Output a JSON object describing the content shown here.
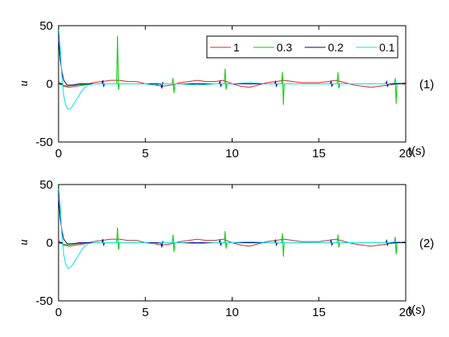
{
  "chart_data": [
    {
      "type": "line",
      "annotation": "(1)",
      "xlabel": "t(s)",
      "ylabel": "u",
      "xlim": [
        0,
        20
      ],
      "ylim": [
        -50,
        50
      ],
      "xticks": [
        "0",
        "5",
        "10",
        "15",
        "20"
      ],
      "yticks": [
        "-50",
        "0",
        "50"
      ],
      "grid": false,
      "legend_position": "top-right",
      "series": [
        {
          "name": "1",
          "color": "#d62728",
          "points": [
            [
              0,
              2
            ],
            [
              0.3,
              -2
            ],
            [
              0.6,
              -3
            ],
            [
              1,
              -2
            ],
            [
              1.5,
              -1
            ],
            [
              2,
              1
            ],
            [
              2.5,
              2
            ],
            [
              3,
              3
            ],
            [
              3.5,
              3
            ],
            [
              4,
              2
            ],
            [
              4.5,
              2
            ],
            [
              5,
              0
            ],
            [
              5.5,
              -1
            ],
            [
              6,
              -2
            ],
            [
              6.5,
              -1
            ],
            [
              7,
              1
            ],
            [
              7.5,
              2
            ],
            [
              8,
              3
            ],
            [
              8.5,
              2
            ],
            [
              9,
              2
            ],
            [
              9.5,
              3
            ],
            [
              10,
              0
            ],
            [
              10.5,
              -2
            ],
            [
              11,
              -3
            ],
            [
              11.5,
              -1
            ],
            [
              12,
              1
            ],
            [
              12.5,
              2
            ],
            [
              13,
              3
            ],
            [
              13.5,
              2
            ],
            [
              14,
              1
            ],
            [
              14.5,
              1
            ],
            [
              15,
              1
            ],
            [
              15.5,
              2
            ],
            [
              16,
              3
            ],
            [
              16.5,
              1
            ],
            [
              17,
              -1
            ],
            [
              17.5,
              -2
            ],
            [
              18,
              -3
            ],
            [
              18.5,
              -2
            ],
            [
              19,
              -1
            ],
            [
              19.5,
              0
            ],
            [
              20,
              1
            ]
          ]
        },
        {
          "name": "0.3",
          "color": "#00cc00",
          "points": [
            [
              0,
              0
            ],
            [
              0.5,
              -2
            ],
            [
              1,
              -1
            ],
            [
              2,
              0
            ],
            [
              3,
              0
            ],
            [
              3.35,
              0
            ],
            [
              3.4,
              41
            ],
            [
              3.45,
              -5
            ],
            [
              3.5,
              0
            ],
            [
              5,
              0
            ],
            [
              6.55,
              0
            ],
            [
              6.6,
              5
            ],
            [
              6.65,
              -8
            ],
            [
              6.7,
              0
            ],
            [
              9.55,
              0
            ],
            [
              9.6,
              13
            ],
            [
              9.65,
              -5
            ],
            [
              9.7,
              0
            ],
            [
              12.85,
              0
            ],
            [
              12.9,
              10
            ],
            [
              12.95,
              -18
            ],
            [
              13,
              0
            ],
            [
              16.05,
              0
            ],
            [
              16.1,
              10
            ],
            [
              16.15,
              -4
            ],
            [
              16.2,
              0
            ],
            [
              19.35,
              0
            ],
            [
              19.4,
              5
            ],
            [
              19.45,
              -17
            ],
            [
              19.5,
              0
            ],
            [
              20,
              0
            ]
          ]
        },
        {
          "name": "0.2",
          "color": "#00008b",
          "points": [
            [
              0,
              38
            ],
            [
              0.05,
              30
            ],
            [
              0.1,
              20
            ],
            [
              0.2,
              10
            ],
            [
              0.3,
              3
            ],
            [
              0.5,
              -1
            ],
            [
              0.8,
              -1
            ],
            [
              1.2,
              0
            ],
            [
              2.5,
              0
            ],
            [
              2.55,
              3
            ],
            [
              2.6,
              -2
            ],
            [
              2.65,
              0
            ],
            [
              5.9,
              0
            ],
            [
              5.95,
              -4
            ],
            [
              6,
              1
            ],
            [
              6.05,
              0
            ],
            [
              9.25,
              0
            ],
            [
              9.3,
              2
            ],
            [
              9.35,
              -2
            ],
            [
              9.4,
              0
            ],
            [
              12.45,
              0
            ],
            [
              12.5,
              2
            ],
            [
              12.55,
              -2
            ],
            [
              12.6,
              0
            ],
            [
              15.65,
              0
            ],
            [
              15.7,
              2
            ],
            [
              15.75,
              -2
            ],
            [
              15.8,
              0
            ],
            [
              18.85,
              0
            ],
            [
              18.9,
              2
            ],
            [
              18.95,
              -2
            ],
            [
              19,
              0
            ],
            [
              20,
              0
            ]
          ]
        },
        {
          "name": "0.1",
          "color": "#00e5e5",
          "points": [
            [
              0,
              50
            ],
            [
              0.1,
              30
            ],
            [
              0.2,
              5
            ],
            [
              0.3,
              -10
            ],
            [
              0.4,
              -18
            ],
            [
              0.55,
              -22
            ],
            [
              0.7,
              -21
            ],
            [
              0.9,
              -17
            ],
            [
              1.1,
              -12
            ],
            [
              1.3,
              -7
            ],
            [
              1.5,
              -3
            ],
            [
              1.7,
              -1
            ],
            [
              2,
              0
            ],
            [
              4,
              0
            ],
            [
              5,
              0
            ],
            [
              5.5,
              -1
            ],
            [
              6,
              0
            ],
            [
              7,
              0
            ],
            [
              8,
              -1
            ],
            [
              9,
              0
            ],
            [
              10,
              0
            ],
            [
              11,
              1
            ],
            [
              12,
              0
            ],
            [
              13,
              0
            ],
            [
              14,
              0
            ],
            [
              15,
              0
            ],
            [
              16,
              0
            ],
            [
              17,
              0
            ],
            [
              18,
              0
            ],
            [
              19,
              0
            ],
            [
              19.5,
              1
            ],
            [
              20,
              0
            ]
          ]
        }
      ]
    },
    {
      "type": "line",
      "annotation": "(2)",
      "xlabel": "t(s)",
      "ylabel": "u",
      "xlim": [
        0,
        20
      ],
      "ylim": [
        -50,
        50
      ],
      "xticks": [
        "0",
        "5",
        "10",
        "15",
        "20"
      ],
      "yticks": [
        "-50",
        "0",
        "50"
      ],
      "grid": false,
      "series": [
        {
          "name": "1",
          "color": "#d62728",
          "points": [
            [
              0,
              2
            ],
            [
              0.3,
              -2
            ],
            [
              0.6,
              -3
            ],
            [
              1,
              -2
            ],
            [
              1.5,
              -1
            ],
            [
              2,
              1
            ],
            [
              2.5,
              2
            ],
            [
              3,
              3
            ],
            [
              3.5,
              3
            ],
            [
              4,
              2
            ],
            [
              4.5,
              2
            ],
            [
              5,
              0
            ],
            [
              5.5,
              -1
            ],
            [
              6,
              -2
            ],
            [
              6.5,
              -1
            ],
            [
              7,
              1
            ],
            [
              7.5,
              2
            ],
            [
              8,
              3
            ],
            [
              8.5,
              2
            ],
            [
              9,
              2
            ],
            [
              9.5,
              3
            ],
            [
              10,
              0
            ],
            [
              10.5,
              -2
            ],
            [
              11,
              -3
            ],
            [
              11.5,
              -1
            ],
            [
              12,
              1
            ],
            [
              12.5,
              2
            ],
            [
              13,
              3
            ],
            [
              13.5,
              2
            ],
            [
              14,
              1
            ],
            [
              14.5,
              1
            ],
            [
              15,
              1
            ],
            [
              15.5,
              2
            ],
            [
              16,
              3
            ],
            [
              16.5,
              1
            ],
            [
              17,
              -1
            ],
            [
              17.5,
              -2
            ],
            [
              18,
              -3
            ],
            [
              18.5,
              -2
            ],
            [
              19,
              -1
            ],
            [
              19.5,
              0
            ],
            [
              20,
              1
            ]
          ]
        },
        {
          "name": "0.3",
          "color": "#00cc00",
          "points": [
            [
              0,
              0
            ],
            [
              0.5,
              -2
            ],
            [
              1,
              -1
            ],
            [
              2,
              0
            ],
            [
              3,
              0
            ],
            [
              3.35,
              0
            ],
            [
              3.4,
              13
            ],
            [
              3.45,
              -6
            ],
            [
              3.5,
              0
            ],
            [
              6.55,
              0
            ],
            [
              6.6,
              7
            ],
            [
              6.65,
              -8
            ],
            [
              6.7,
              0
            ],
            [
              9.55,
              0
            ],
            [
              9.6,
              10
            ],
            [
              9.65,
              -5
            ],
            [
              9.7,
              0
            ],
            [
              12.85,
              0
            ],
            [
              12.9,
              8
            ],
            [
              12.95,
              -12
            ],
            [
              13,
              0
            ],
            [
              16.05,
              0
            ],
            [
              16.1,
              7
            ],
            [
              16.15,
              -4
            ],
            [
              16.2,
              0
            ],
            [
              19.35,
              0
            ],
            [
              19.4,
              5
            ],
            [
              19.45,
              -10
            ],
            [
              19.5,
              0
            ],
            [
              20,
              0
            ]
          ]
        },
        {
          "name": "0.2",
          "color": "#00008b",
          "points": [
            [
              0,
              38
            ],
            [
              0.05,
              30
            ],
            [
              0.1,
              20
            ],
            [
              0.2,
              10
            ],
            [
              0.3,
              3
            ],
            [
              0.5,
              -1
            ],
            [
              0.8,
              -1
            ],
            [
              1.2,
              0
            ],
            [
              2.5,
              0
            ],
            [
              2.55,
              3
            ],
            [
              2.6,
              -2
            ],
            [
              2.65,
              0
            ],
            [
              5.9,
              0
            ],
            [
              5.95,
              -4
            ],
            [
              6,
              1
            ],
            [
              6.05,
              0
            ],
            [
              9.25,
              0
            ],
            [
              9.3,
              2
            ],
            [
              9.35,
              -2
            ],
            [
              9.4,
              0
            ],
            [
              12.45,
              0
            ],
            [
              12.5,
              2
            ],
            [
              12.55,
              -2
            ],
            [
              12.6,
              0
            ],
            [
              15.65,
              0
            ],
            [
              15.7,
              2
            ],
            [
              15.75,
              -2
            ],
            [
              15.8,
              0
            ],
            [
              18.85,
              0
            ],
            [
              18.9,
              2
            ],
            [
              18.95,
              -2
            ],
            [
              19,
              0
            ],
            [
              20,
              0
            ]
          ]
        },
        {
          "name": "0.1",
          "color": "#00e5e5",
          "points": [
            [
              0,
              50
            ],
            [
              0.1,
              30
            ],
            [
              0.2,
              5
            ],
            [
              0.3,
              -10
            ],
            [
              0.4,
              -18
            ],
            [
              0.55,
              -22
            ],
            [
              0.7,
              -21
            ],
            [
              0.9,
              -17
            ],
            [
              1.1,
              -12
            ],
            [
              1.3,
              -7
            ],
            [
              1.5,
              -3
            ],
            [
              1.7,
              -1
            ],
            [
              2,
              0
            ],
            [
              4,
              0
            ],
            [
              5,
              0
            ],
            [
              5.5,
              -1
            ],
            [
              6,
              0
            ],
            [
              7,
              0
            ],
            [
              8,
              -1
            ],
            [
              9,
              0
            ],
            [
              10,
              0
            ],
            [
              11,
              1
            ],
            [
              12,
              0
            ],
            [
              13,
              0
            ],
            [
              14,
              0
            ],
            [
              15,
              0
            ],
            [
              16,
              0
            ],
            [
              17,
              0
            ],
            [
              18,
              0
            ],
            [
              19,
              0
            ],
            [
              19.5,
              1
            ],
            [
              20,
              0
            ]
          ]
        }
      ]
    }
  ]
}
